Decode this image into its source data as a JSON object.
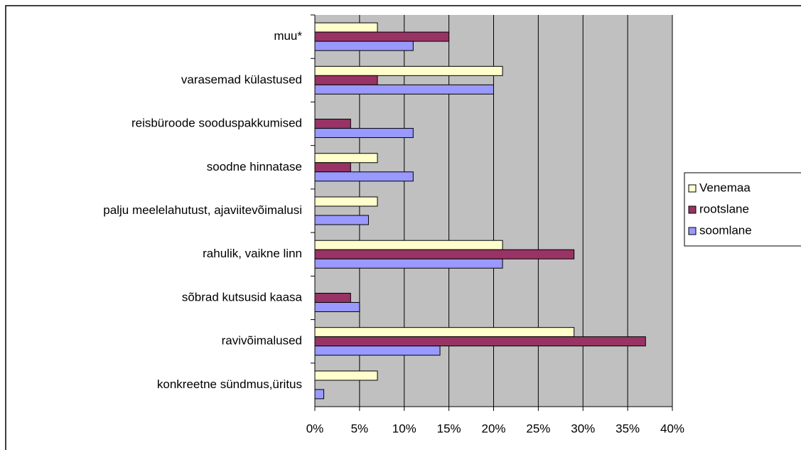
{
  "chart_data": {
    "type": "bar",
    "orientation": "horizontal",
    "categories": [
      "muu*",
      "varasemad külastused",
      "reisbüroode sooduspakkumised",
      "soodne hinnatase",
      "palju meelelahutust, ajaviitevõimalusi",
      "rahulik, vaikne linn",
      "sõbrad kutsusid kaasa",
      "ravivõimalused",
      "konkreetne sündmus,üritus"
    ],
    "series": [
      {
        "name": "Venemaa",
        "color": "#ffffcc",
        "values": [
          7,
          21,
          null,
          7,
          7,
          21,
          null,
          29,
          7
        ]
      },
      {
        "name": "rootslane",
        "color": "#993366",
        "values": [
          15,
          7,
          4,
          4,
          null,
          29,
          4,
          37,
          null
        ]
      },
      {
        "name": "soomlane",
        "color": "#9999ff",
        "values": [
          11,
          20,
          11,
          11,
          6,
          21,
          5,
          14,
          1
        ]
      }
    ],
    "xlim": [
      0,
      40
    ],
    "xticks": [
      {
        "value": 0,
        "label": "0%"
      },
      {
        "value": 5,
        "label": "5%"
      },
      {
        "value": 10,
        "label": "10%"
      },
      {
        "value": 15,
        "label": "15%"
      },
      {
        "value": 20,
        "label": "20%"
      },
      {
        "value": 25,
        "label": "25%"
      },
      {
        "value": 30,
        "label": "30%"
      },
      {
        "value": 35,
        "label": "35%"
      },
      {
        "value": 40,
        "label": "40%"
      }
    ],
    "grid": true,
    "legend": "right"
  }
}
